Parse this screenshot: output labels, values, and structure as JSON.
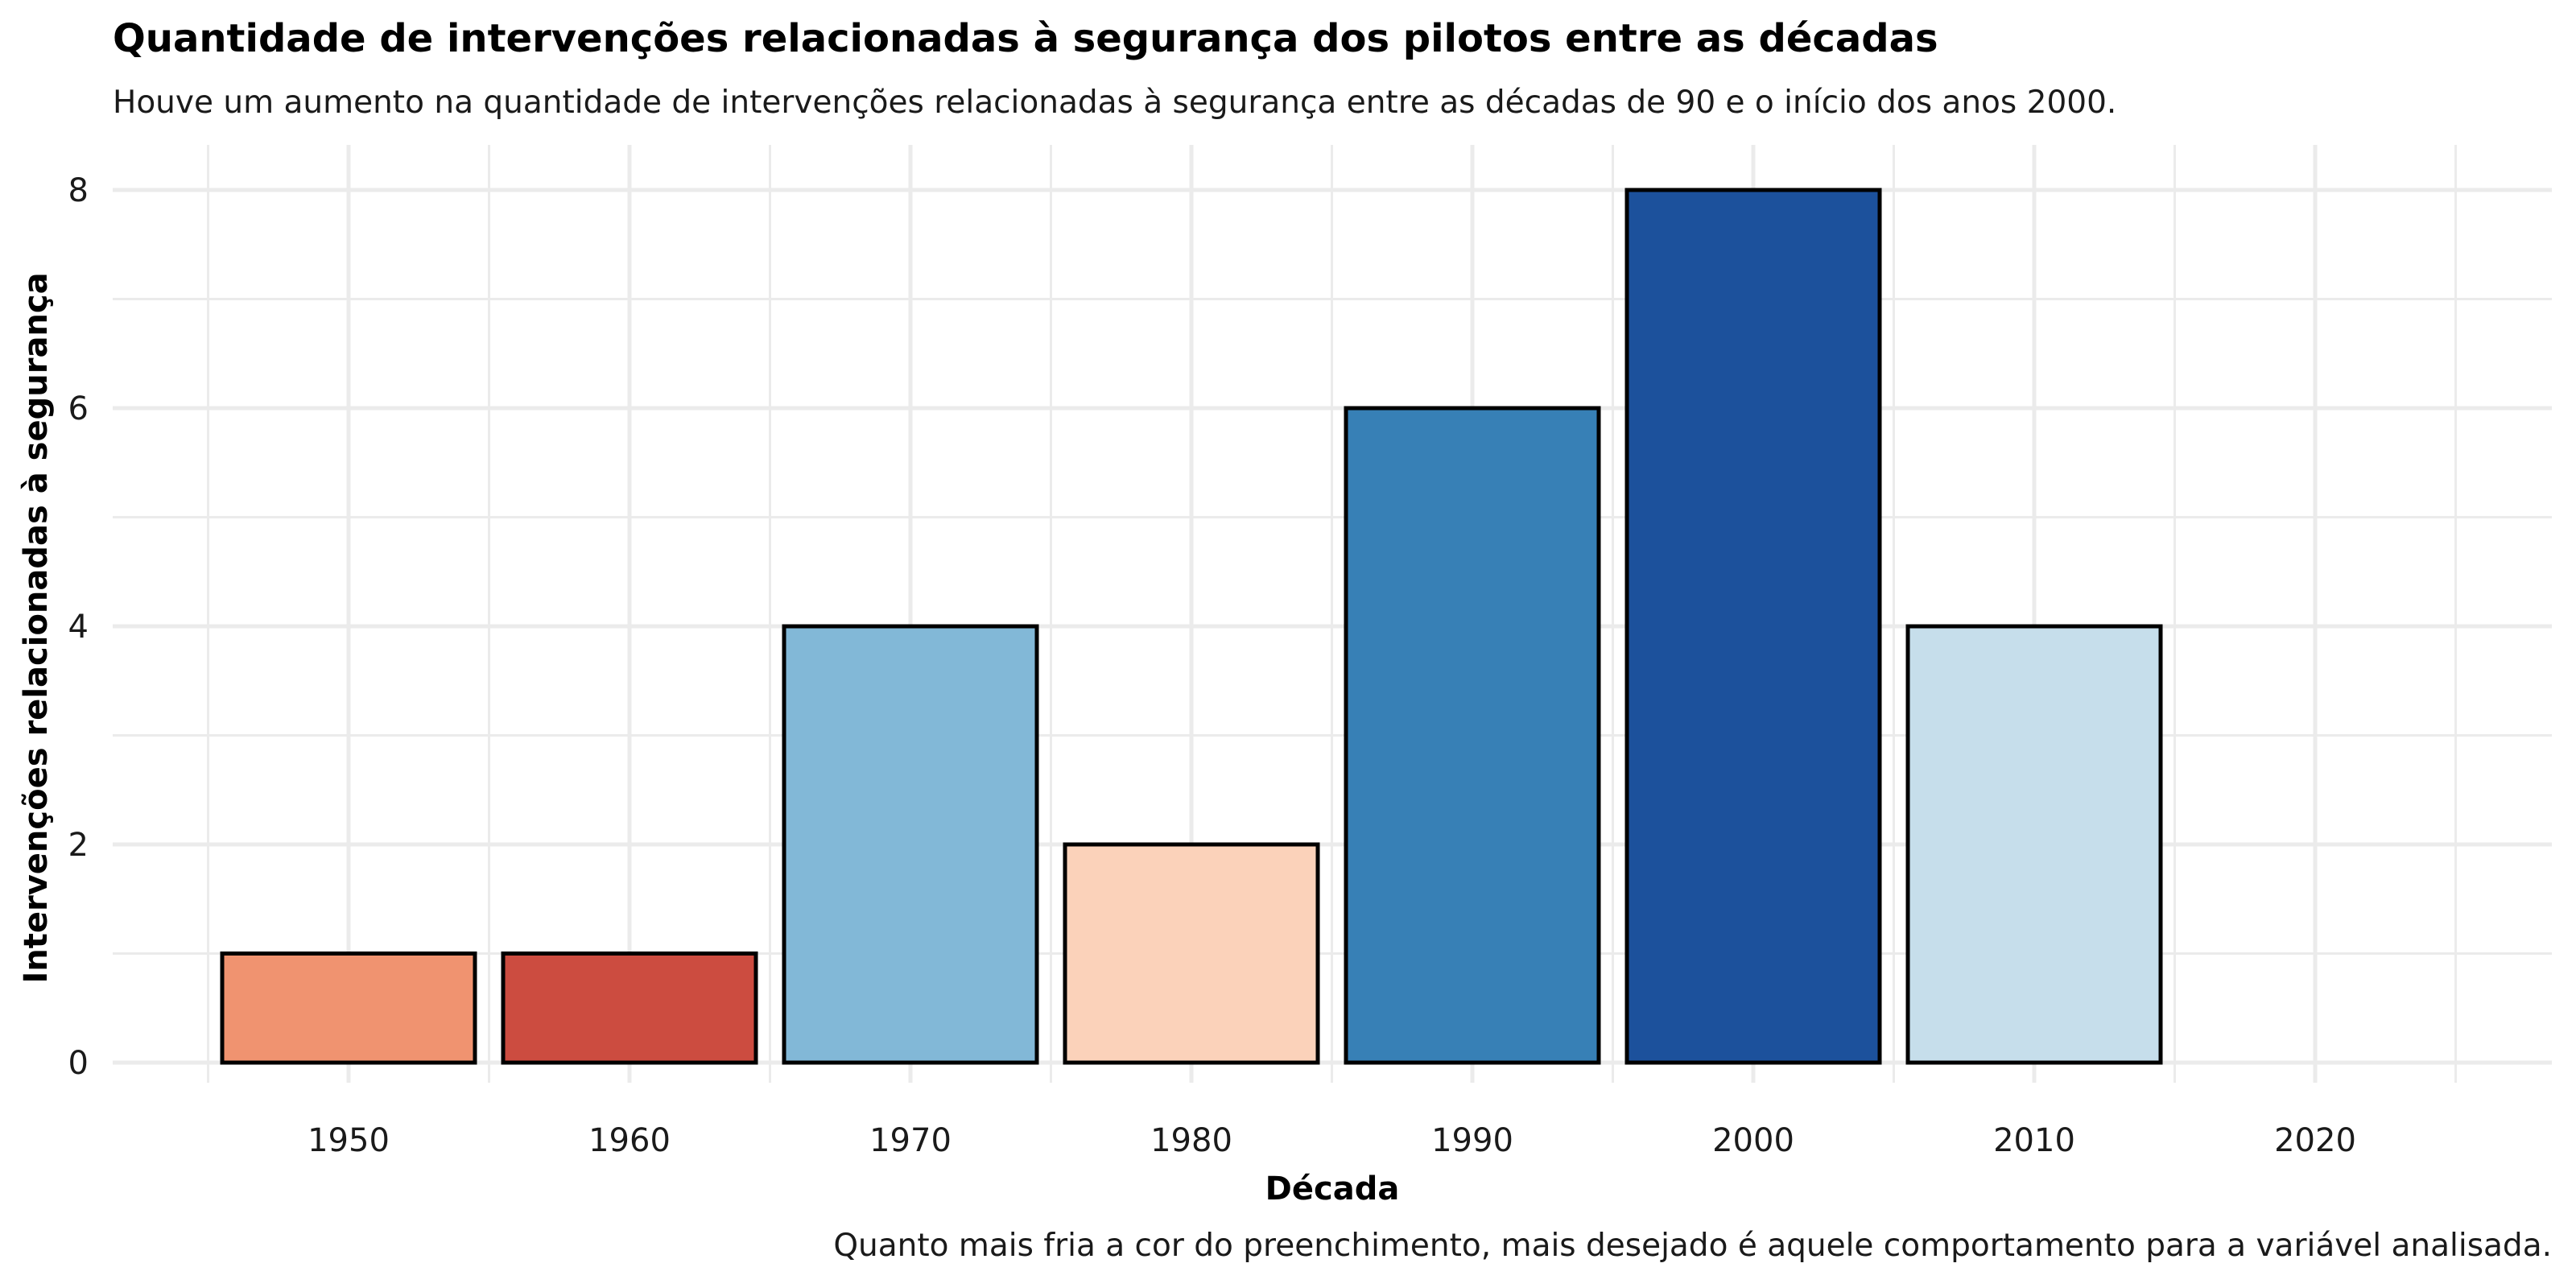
{
  "chart_data": {
    "type": "bar",
    "title": "Quantidade de intervenções relacionadas à segurança dos pilotos entre as décadas",
    "subtitle": "Houve um aumento na quantidade de intervenções relacionadas à segurança entre as décadas de 90 e o início dos anos 2000.",
    "caption": "Quanto mais fria a cor do preenchimento, mais desejado é aquele comportamento para a variável analisada.",
    "xlabel": "Década",
    "ylabel": "Intervenções relacionadas à segurança",
    "categories": [
      "1950",
      "1960",
      "1970",
      "1980",
      "1990",
      "2000",
      "2010",
      "2020"
    ],
    "values": [
      1,
      1,
      4,
      2,
      6,
      8,
      4,
      0
    ],
    "colors": [
      "#F09370",
      "#CC4C40",
      "#82B8D7",
      "#FBD2BA",
      "#3780B6",
      "#1C519C",
      "#C6DEEB",
      "#F7F7F7"
    ],
    "bar_outline_color": "#000000",
    "ylim": [
      0,
      8
    ],
    "yticks": [
      "0",
      "2",
      "4",
      "6",
      "8"
    ],
    "grid": true,
    "legend": "none"
  }
}
